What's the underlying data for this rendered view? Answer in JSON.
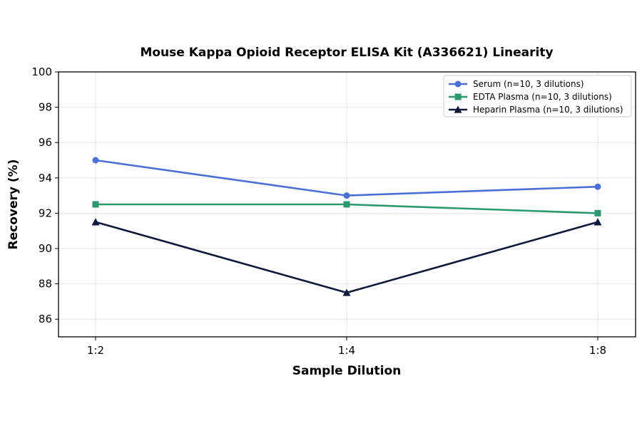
{
  "chart_data": {
    "type": "line",
    "title": "Mouse Kappa Opioid Receptor ELISA Kit (A336621) Linearity",
    "xlabel": "Sample Dilution",
    "ylabel": "Recovery (%)",
    "categories": [
      "1:2",
      "1:4",
      "1:8"
    ],
    "ylim": [
      85,
      100
    ],
    "yticks": [
      86,
      88,
      90,
      92,
      94,
      96,
      98,
      100
    ],
    "grid": true,
    "legend_position": "top-right",
    "series": [
      {
        "name": "Serum (n=10, 3 dilutions)",
        "values": [
          95.0,
          93.0,
          93.5
        ],
        "color": "#4a6fd6",
        "marker": "circle"
      },
      {
        "name": "EDTA Plasma (n=10, 3 dilutions)",
        "values": [
          92.5,
          92.5,
          92.0
        ],
        "color": "#2a9a6e",
        "marker": "square"
      },
      {
        "name": "Heparin Plasma (n=10, 3 dilutions)",
        "values": [
          91.5,
          87.5,
          91.5
        ],
        "color": "#0c1a3c",
        "marker": "triangle"
      }
    ]
  }
}
